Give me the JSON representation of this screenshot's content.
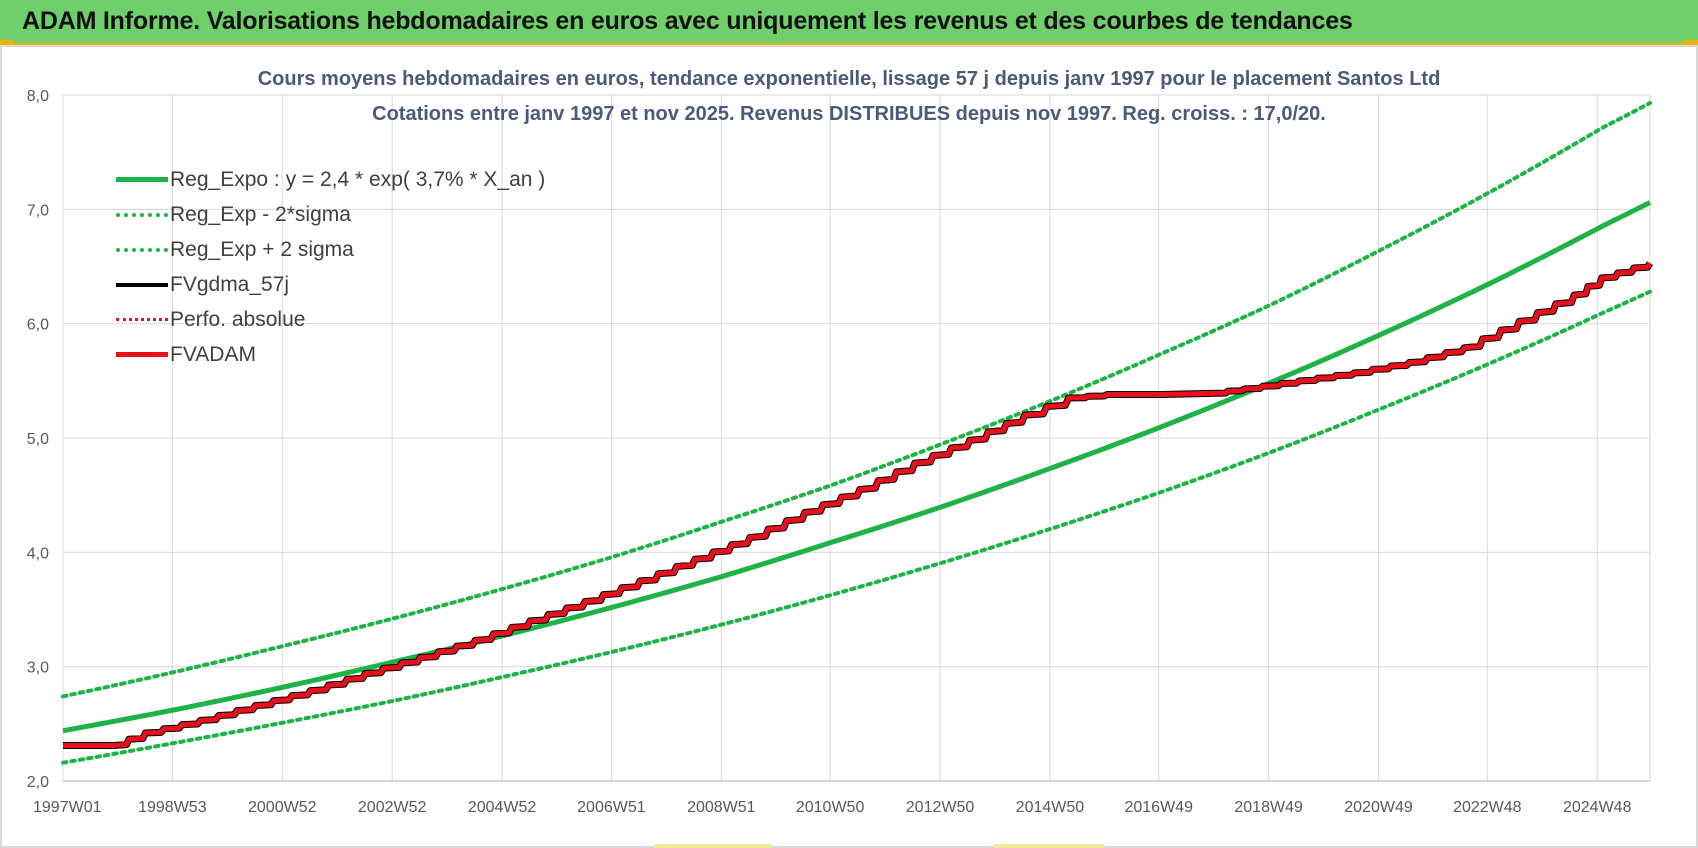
{
  "banner": {
    "title": "ADAM Informe. Valorisations hebdomadaires en euros avec uniquement les revenus et des courbes de tendances"
  },
  "colors": {
    "banner_bg": "#6fcf6b",
    "accent_border": "#f0b400",
    "trend_green": "#1db346",
    "fvadam_red": "#e8101a",
    "fvgdma_black": "#000000",
    "grid": "#d9d9d9",
    "title_text": "#4a5a78"
  },
  "chart_data": {
    "type": "line",
    "title": "Cours moyens hebdomadaires en euros, tendance exponentielle, lissage 57 j depuis janv 1997 pour le placement Santos Ltd",
    "subtitle": "Cotations entre janv 1997 et nov 2025. Revenus DISTRIBUES depuis nov 1997. Reg. croiss. : 17,0/20.",
    "xlabel": "",
    "ylabel": "",
    "ylim": [
      2.0,
      8.0
    ],
    "y_ticks": [
      "2,0",
      "3,0",
      "4,0",
      "5,0",
      "6,0",
      "7,0",
      "8,0"
    ],
    "x_range": [
      1997.0,
      2025.88
    ],
    "x_ticks": [
      {
        "x": 1997.0,
        "label": "1997W01"
      },
      {
        "x": 1998.99,
        "label": "1998W53"
      },
      {
        "x": 2000.99,
        "label": "2000W52"
      },
      {
        "x": 2002.99,
        "label": "2002W52"
      },
      {
        "x": 2004.99,
        "label": "2004W52"
      },
      {
        "x": 2006.98,
        "label": "2006W51"
      },
      {
        "x": 2008.98,
        "label": "2008W51"
      },
      {
        "x": 2010.96,
        "label": "2010W50"
      },
      {
        "x": 2012.96,
        "label": "2012W50"
      },
      {
        "x": 2014.96,
        "label": "2014W50"
      },
      {
        "x": 2016.94,
        "label": "2016W49"
      },
      {
        "x": 2018.94,
        "label": "2018W49"
      },
      {
        "x": 2020.94,
        "label": "2020W49"
      },
      {
        "x": 2022.92,
        "label": "2022W48"
      },
      {
        "x": 2024.92,
        "label": "2024W48"
      }
    ],
    "grid": true,
    "legend_position": "top-left",
    "series": [
      {
        "name": "Reg_Expo : y = 2,4 * exp( 3,7% *  X_an )",
        "style": "solid",
        "color": "#1db346",
        "x": [
          1997.0,
          1999.0,
          2001.0,
          2003.0,
          2005.0,
          2007.0,
          2009.0,
          2011.0,
          2013.0,
          2015.0,
          2017.0,
          2019.0,
          2021.0,
          2023.0,
          2025.0,
          2025.88
        ],
        "values": [
          2.44,
          2.62,
          2.82,
          3.04,
          3.27,
          3.52,
          3.79,
          4.09,
          4.4,
          4.74,
          5.1,
          5.49,
          5.91,
          6.36,
          6.85,
          7.06
        ]
      },
      {
        "name": "Reg_Exp - 2*sigma",
        "style": "dotted",
        "color": "#1db346",
        "x": [
          1997.0,
          1999.0,
          2001.0,
          2003.0,
          2005.0,
          2007.0,
          2009.0,
          2011.0,
          2013.0,
          2015.0,
          2017.0,
          2019.0,
          2021.0,
          2023.0,
          2025.0,
          2025.88
        ],
        "values": [
          2.16,
          2.33,
          2.51,
          2.7,
          2.91,
          3.13,
          3.37,
          3.63,
          3.91,
          4.21,
          4.53,
          4.88,
          5.26,
          5.66,
          6.09,
          6.28
        ]
      },
      {
        "name": "Reg_Exp + 2 sigma",
        "style": "dotted",
        "color": "#1db346",
        "x": [
          1997.0,
          1999.0,
          2001.0,
          2003.0,
          2005.0,
          2007.0,
          2009.0,
          2011.0,
          2013.0,
          2015.0,
          2017.0,
          2019.0,
          2021.0,
          2023.0,
          2025.0,
          2025.88
        ],
        "values": [
          2.74,
          2.95,
          3.18,
          3.42,
          3.68,
          3.96,
          4.27,
          4.59,
          4.95,
          5.33,
          5.74,
          6.17,
          6.65,
          7.16,
          7.71,
          7.93
        ]
      },
      {
        "name": "FVgdma_57j",
        "style": "solid",
        "color": "#000000",
        "x": [
          1997.0,
          1997.9,
          1998.5,
          1999.5,
          2000.5,
          2001.5,
          2002.5,
          2003.5,
          2004.5,
          2005.5,
          2006.5,
          2007.5,
          2008.5,
          2009.5,
          2010.5,
          2011.5,
          2012.5,
          2013.5,
          2014.5,
          2015.3,
          2016.0,
          2017.0,
          2017.9,
          2018.5,
          2019.5,
          2020.5,
          2021.5,
          2022.5,
          2023.5,
          2024.5,
          2025.0,
          2025.88
        ],
        "values": [
          2.31,
          2.31,
          2.42,
          2.53,
          2.66,
          2.79,
          2.94,
          3.08,
          3.23,
          3.4,
          3.57,
          3.75,
          3.94,
          4.13,
          4.35,
          4.55,
          4.78,
          4.98,
          5.2,
          5.35,
          5.38,
          5.38,
          5.39,
          5.43,
          5.5,
          5.57,
          5.66,
          5.79,
          6.02,
          6.25,
          6.4,
          6.53
        ]
      },
      {
        "name": "Perfo. absolue",
        "style": "dotted",
        "color": "#e8101a",
        "x": [
          1997.0,
          1997.9,
          1998.5,
          1999.5,
          2000.5,
          2001.5,
          2002.5,
          2003.5,
          2004.5,
          2005.5,
          2006.5,
          2007.5,
          2008.5,
          2009.5,
          2010.5,
          2011.5,
          2012.5,
          2013.5,
          2014.5,
          2015.3,
          2016.0,
          2017.0,
          2017.9,
          2018.5,
          2019.5,
          2020.5,
          2021.5,
          2022.5,
          2023.5,
          2024.5,
          2025.0,
          2025.88
        ],
        "values": [
          2.31,
          2.31,
          2.42,
          2.53,
          2.66,
          2.79,
          2.94,
          3.08,
          3.23,
          3.4,
          3.57,
          3.75,
          3.94,
          4.13,
          4.35,
          4.55,
          4.78,
          4.98,
          5.2,
          5.35,
          5.38,
          5.38,
          5.39,
          5.43,
          5.5,
          5.57,
          5.66,
          5.79,
          6.02,
          6.25,
          6.4,
          6.53
        ]
      },
      {
        "name": "FVADAM",
        "style": "solid-step",
        "color": "#e8101a",
        "x": [
          1997.0,
          1997.9,
          1998.5,
          1999.5,
          2000.5,
          2001.5,
          2002.5,
          2003.5,
          2004.5,
          2005.5,
          2006.5,
          2007.5,
          2008.5,
          2009.5,
          2010.5,
          2011.5,
          2012.5,
          2013.5,
          2014.5,
          2015.3,
          2016.0,
          2017.0,
          2017.9,
          2018.5,
          2019.5,
          2020.5,
          2021.5,
          2022.5,
          2023.5,
          2024.5,
          2025.0,
          2025.88
        ],
        "values": [
          2.31,
          2.31,
          2.42,
          2.53,
          2.66,
          2.79,
          2.94,
          3.08,
          3.23,
          3.4,
          3.57,
          3.75,
          3.94,
          4.13,
          4.35,
          4.55,
          4.78,
          4.98,
          5.2,
          5.35,
          5.38,
          5.38,
          5.39,
          5.43,
          5.5,
          5.57,
          5.66,
          5.79,
          6.02,
          6.25,
          6.4,
          6.53
        ]
      }
    ]
  }
}
